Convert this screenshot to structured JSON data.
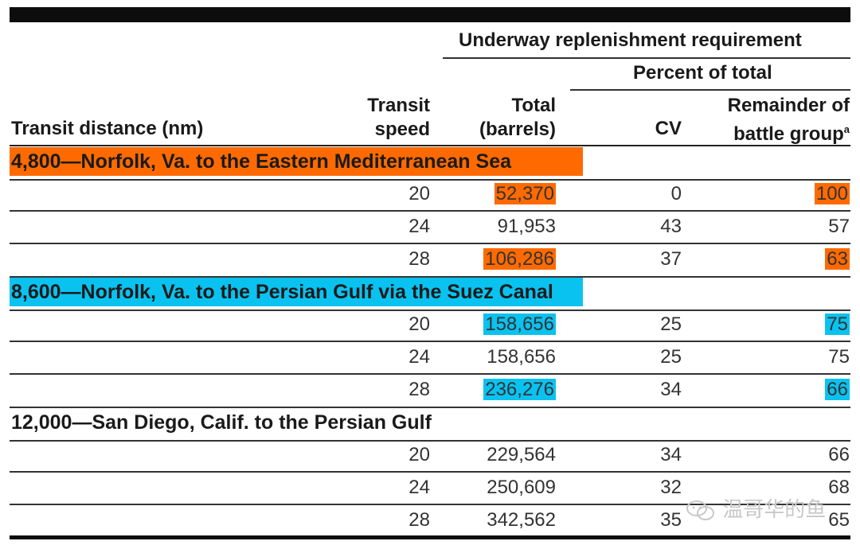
{
  "header": {
    "group_label": "Underway replenishment requirement",
    "sub_group_label": "Percent of total",
    "col_distance": "Transit distance (nm)",
    "col_speed_line1": "Transit",
    "col_speed_line2": "speed",
    "col_total_line1": "Total",
    "col_total_line2": "(barrels)",
    "col_cv": "CV",
    "col_rem_line1": "Remainder of",
    "col_rem_line2": "battle group",
    "col_rem_footnote": "a"
  },
  "groups": [
    {
      "title": "4,800—Norfolk, Va. to the Eastern Mediterranean Sea",
      "highlight": "#ff6a00",
      "rows": [
        {
          "speed": "20",
          "total": "52,370",
          "cv": "0",
          "rem": "100"
        },
        {
          "speed": "24",
          "total": "91,953",
          "cv": "43",
          "rem": "57"
        },
        {
          "speed": "28",
          "total": "106,286",
          "cv": "37",
          "rem": "63"
        }
      ]
    },
    {
      "title": "8,600—Norfolk, Va. to the Persian Gulf via the Suez Canal",
      "highlight": "#0ac2f0",
      "rows": [
        {
          "speed": "20",
          "total": "158,656",
          "cv": "25",
          "rem": "75"
        },
        {
          "speed": "24",
          "total": "158,656",
          "cv": "25",
          "rem": "75"
        },
        {
          "speed": "28",
          "total": "236,276",
          "cv": "34",
          "rem": "66"
        }
      ]
    },
    {
      "title": "12,000—San Diego, Calif. to the Persian Gulf",
      "highlight": "",
      "rows": [
        {
          "speed": "20",
          "total": "229,564",
          "cv": "34",
          "rem": "66"
        },
        {
          "speed": "24",
          "total": "250,609",
          "cv": "32",
          "rem": "68"
        },
        {
          "speed": "28",
          "total": "342,562",
          "cv": "35",
          "rem": "65"
        }
      ]
    }
  ],
  "watermark": {
    "text": "温哥华的鱼",
    "icon": "wechat-icon"
  }
}
